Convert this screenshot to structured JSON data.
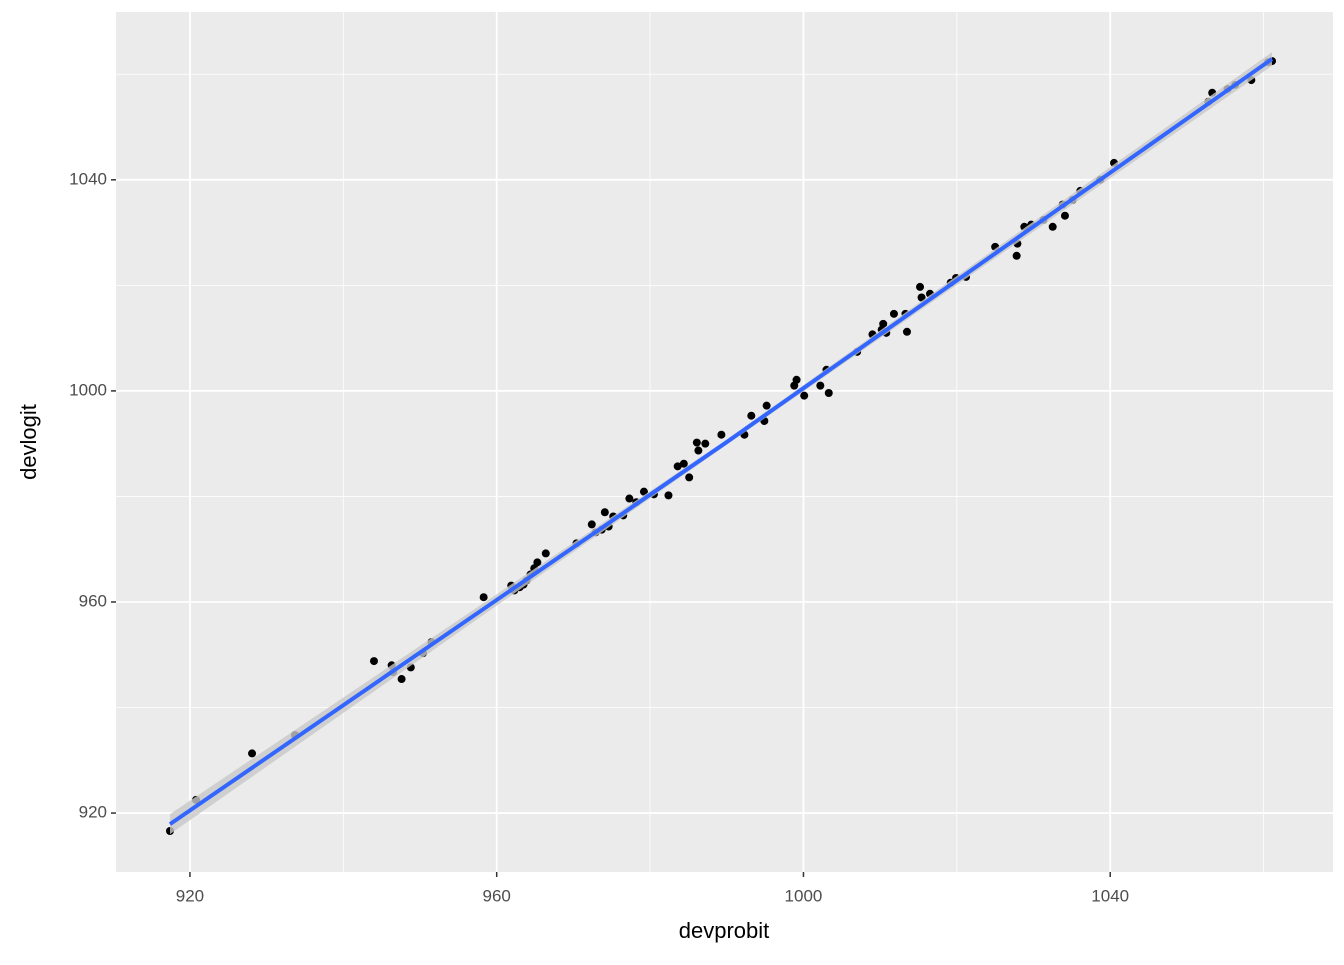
{
  "chart_data": {
    "type": "scatter",
    "x_label": "devprobit",
    "y_label": "devlogit",
    "xlim": [
      910.36,
      1069.05
    ],
    "ylim": [
      908.83,
      1071.8
    ],
    "xticks": [
      920,
      960,
      1000,
      1040
    ],
    "yticks": [
      920,
      960,
      1000,
      1040
    ],
    "xminor": [
      940,
      980,
      1020,
      1060
    ],
    "yminor": [
      940,
      980,
      1020,
      1060
    ],
    "grid": true,
    "point_color": "#000000",
    "x": [
      917.4,
      920.8,
      928.1,
      933.7,
      944.0,
      946.3,
      946.5,
      947.6,
      948.8,
      950.4,
      951.5,
      958.3,
      961.9,
      962.3,
      963.0,
      963.5,
      963.9,
      964.4,
      964.9,
      965.3,
      966.4,
      970.4,
      972.4,
      972.9,
      973.7,
      974.1,
      974.6,
      975.2,
      976.5,
      977.3,
      978.2,
      979.2,
      980.5,
      982.4,
      983.6,
      984.4,
      985.1,
      986.1,
      986.3,
      987.2,
      989.3,
      992.3,
      993.2,
      994.9,
      995.2,
      998.8,
      999.1,
      1000.1,
      1002.2,
      1003.0,
      1003.3,
      1007.0,
      1009.0,
      1010.2,
      1010.8,
      1010.4,
      1011.8,
      1013.3,
      1013.5,
      1015.2,
      1015.4,
      1016.5,
      1019.2,
      1019.9,
      1021.2,
      1025.0,
      1027.8,
      1027.9,
      1028.8,
      1029.7,
      1031.3,
      1032.5,
      1033.8,
      1034.1,
      1035.1,
      1036.1,
      1038.7,
      1040.5,
      1052.8,
      1053.3,
      1055.3,
      1056.3,
      1058.4,
      1060.6,
      1061.1
    ],
    "y": [
      916.6,
      922.5,
      931.3,
      934.8,
      948.8,
      948.0,
      946.7,
      945.4,
      947.6,
      950.3,
      952.4,
      960.9,
      963.1,
      962.2,
      962.8,
      963.3,
      964.1,
      965.2,
      966.4,
      967.5,
      969.2,
      971.1,
      974.7,
      973.2,
      973.7,
      977.0,
      974.3,
      976.2,
      976.4,
      979.6,
      978.9,
      980.9,
      980.4,
      980.2,
      985.7,
      986.2,
      983.6,
      990.2,
      988.7,
      990.0,
      991.7,
      991.7,
      995.3,
      994.3,
      997.2,
      1001.0,
      1002.1,
      999.1,
      1001.0,
      1004.0,
      999.6,
      1007.4,
      1010.7,
      1011.6,
      1011.0,
      1012.7,
      1014.6,
      1014.6,
      1011.2,
      1019.7,
      1017.7,
      1018.4,
      1020.5,
      1021.4,
      1021.6,
      1027.3,
      1025.6,
      1027.9,
      1031.1,
      1031.5,
      1032.4,
      1031.1,
      1035.3,
      1033.2,
      1036.2,
      1037.9,
      1040.0,
      1043.2,
      1054.8,
      1056.5,
      1057.2,
      1058.0,
      1058.9,
      1062.3,
      1062.5
    ],
    "fit": {
      "color": "#3366ff",
      "band_color": "#c8c8c8",
      "x": [
        917.4,
        990,
        1061.1
      ],
      "y": [
        917.9,
        990.3,
        1062.9
      ],
      "lower": [
        916.0,
        989.8,
        1061.6
      ],
      "upper": [
        919.8,
        990.8,
        1064.2
      ]
    }
  }
}
